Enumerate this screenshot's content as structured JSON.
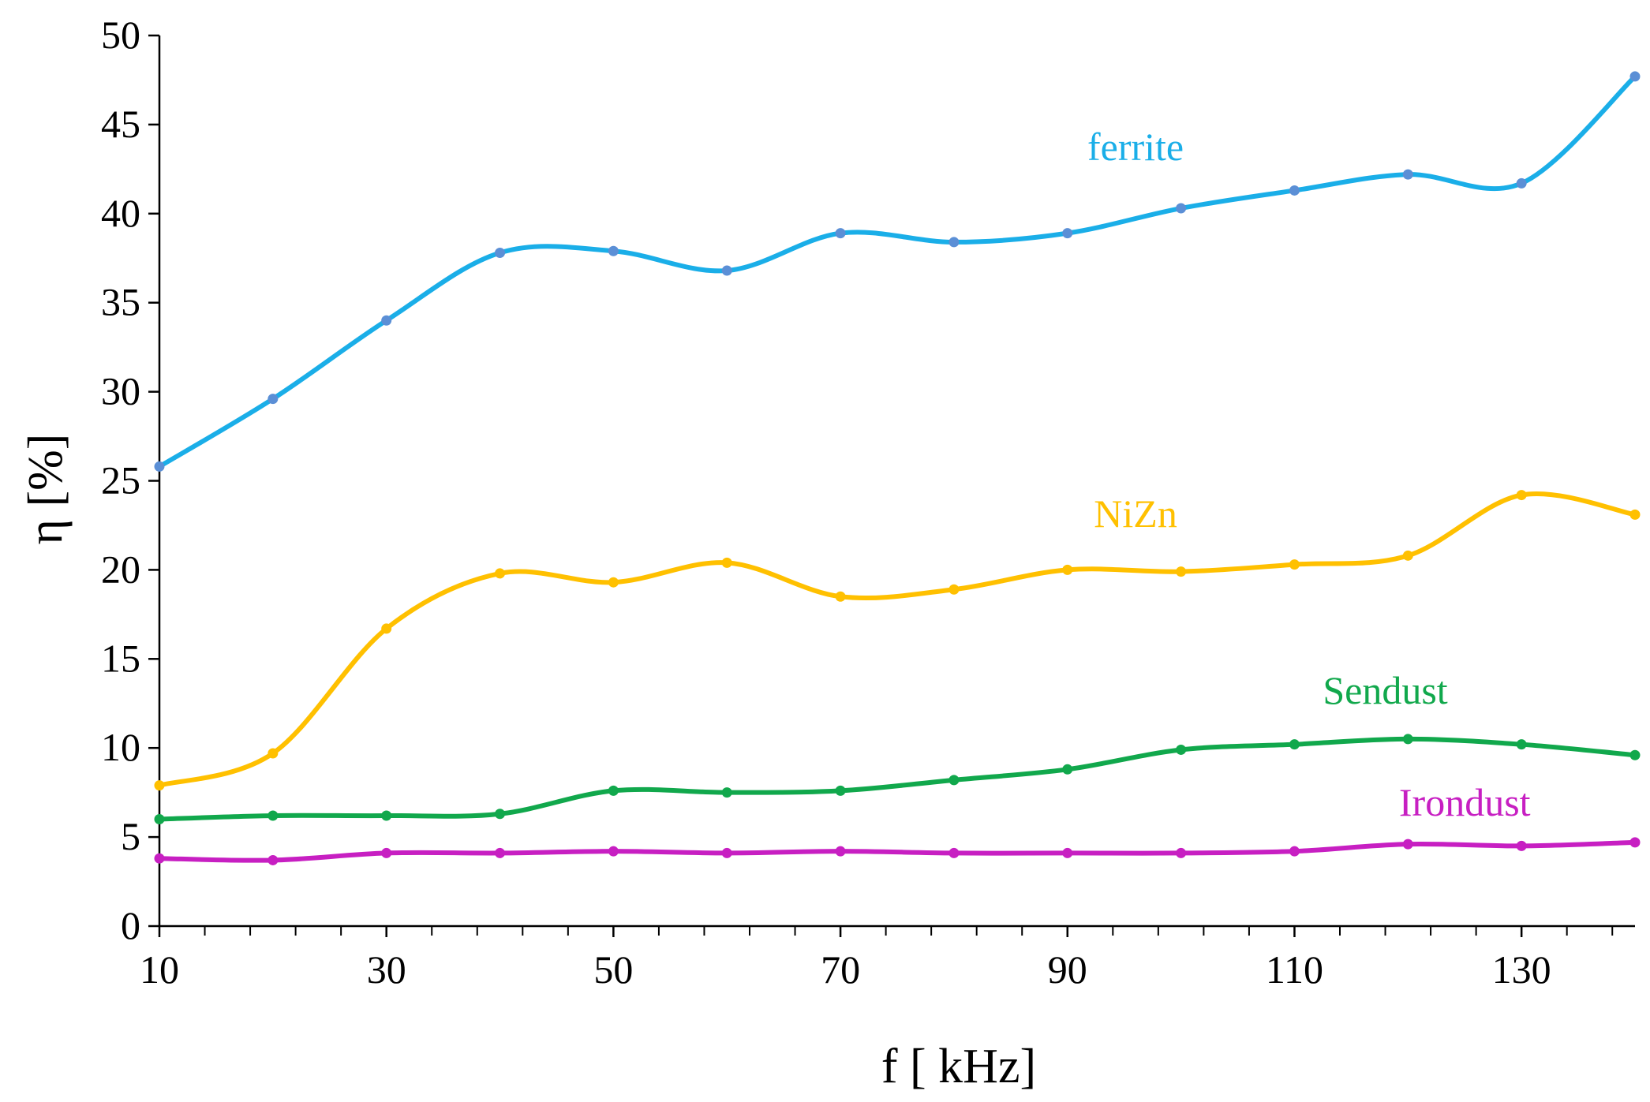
{
  "chart_data": {
    "type": "line",
    "title": "",
    "xlabel": "f [ kHz]",
    "ylabel": "η [%]",
    "xlim": [
      10,
      140
    ],
    "ylim": [
      0,
      50
    ],
    "x_ticks": [
      10,
      30,
      50,
      70,
      90,
      110,
      130
    ],
    "x_minor_step": 4,
    "y_ticks": [
      0,
      5,
      10,
      15,
      20,
      25,
      30,
      35,
      40,
      45,
      50
    ],
    "grid": false,
    "legend": "inline labels",
    "x": [
      10,
      20,
      30,
      40,
      50,
      60,
      70,
      80,
      90,
      100,
      110,
      120,
      130,
      140
    ],
    "series": [
      {
        "name": "ferrite",
        "color": "#1aaee8",
        "marker_color": "#5b8fd6",
        "values": [
          25.8,
          29.6,
          34.0,
          37.8,
          37.9,
          36.8,
          38.9,
          38.4,
          38.9,
          40.3,
          41.3,
          42.2,
          41.7,
          47.7
        ]
      },
      {
        "name": "NiZn",
        "color": "#ffc000",
        "marker_color": "#ffc000",
        "values": [
          7.9,
          9.7,
          16.7,
          19.8,
          19.3,
          20.4,
          18.5,
          18.9,
          20.0,
          19.9,
          20.3,
          20.8,
          24.2,
          23.1
        ]
      },
      {
        "name": "Sendust",
        "color": "#11a84c",
        "marker_color": "#11a84c",
        "values": [
          6.0,
          6.2,
          6.2,
          6.3,
          7.6,
          7.5,
          7.6,
          8.2,
          8.8,
          9.9,
          10.2,
          10.5,
          10.2,
          9.6
        ]
      },
      {
        "name": "Irondust",
        "color": "#c71fc2",
        "marker_color": "#c71fc2",
        "values": [
          3.8,
          3.7,
          4.1,
          4.1,
          4.2,
          4.1,
          4.2,
          4.1,
          4.1,
          4.1,
          4.2,
          4.6,
          4.5,
          4.7
        ]
      }
    ]
  }
}
